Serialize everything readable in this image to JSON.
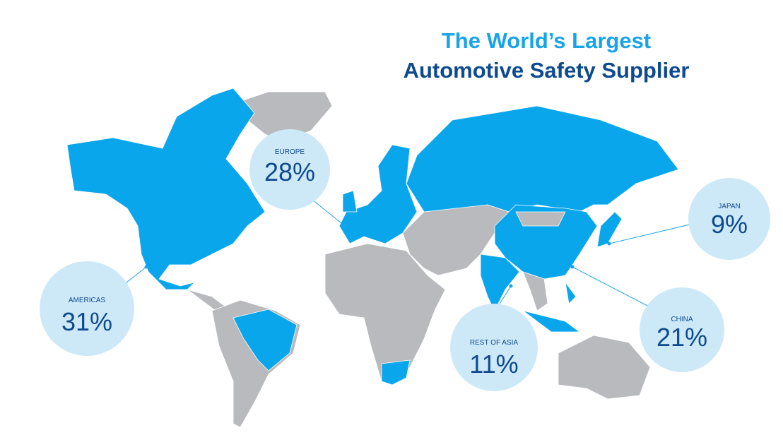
{
  "title": {
    "line1": "The World’s Largest",
    "line2": "Automotive Safety Supplier"
  },
  "regions": [
    {
      "label": "EUROPE",
      "share": "28%"
    },
    {
      "label": "AMERICAS",
      "share": "31%"
    },
    {
      "label": "REST OF ASIA",
      "share": "11%"
    },
    {
      "label": "CHINA",
      "share": "21%"
    },
    {
      "label": "JAPAN",
      "share": "9%"
    }
  ]
}
